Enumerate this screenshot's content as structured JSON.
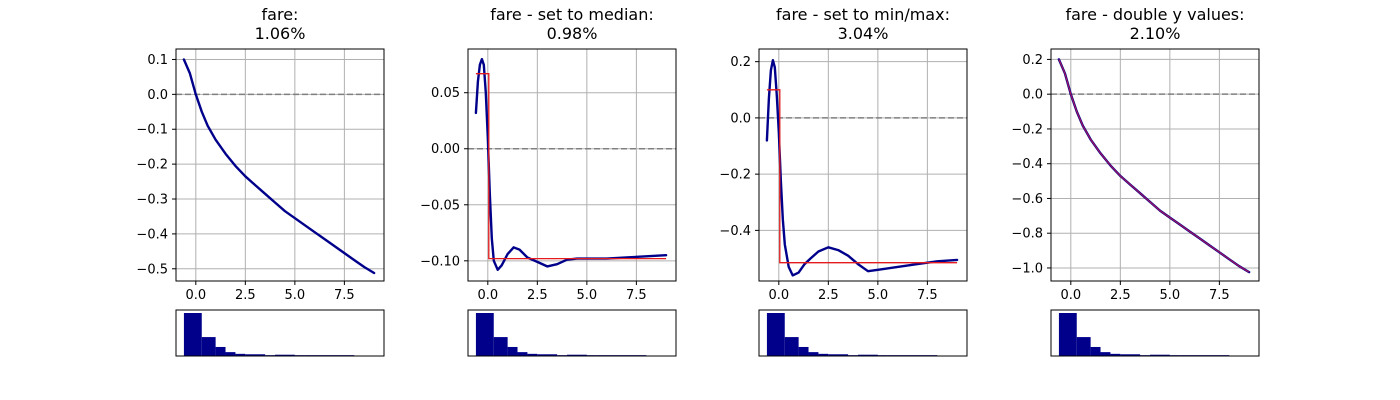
{
  "chart_data": [
    {
      "type": "line",
      "title_lines": [
        "fare:",
        "1.06%"
      ],
      "xlim": [
        -1.0,
        9.5
      ],
      "ylim": [
        -0.535,
        0.13
      ],
      "xticks": [
        0.0,
        2.5,
        5.0,
        7.5
      ],
      "xtick_labels": [
        "0.0",
        "2.5",
        "5.0",
        "7.5"
      ],
      "yticks": [
        0.1,
        0.0,
        -0.1,
        -0.2,
        -0.3,
        -0.4,
        -0.5
      ],
      "ytick_labels": [
        "0.1",
        "0.0",
        "−0.1",
        "−0.2",
        "−0.3",
        "−0.4",
        "−0.5"
      ],
      "zero_line": 0.0,
      "grid": true,
      "series": [
        {
          "style": "line",
          "color": "#00008b",
          "x": [
            -0.6,
            -0.3,
            0.0,
            0.3,
            0.6,
            1.0,
            1.5,
            2.0,
            2.5,
            3.0,
            3.5,
            4.0,
            4.5,
            5.0,
            5.5,
            6.0,
            6.5,
            7.0,
            7.5,
            8.0,
            8.5,
            9.0
          ],
          "y": [
            0.1,
            0.06,
            0.0,
            -0.05,
            -0.09,
            -0.13,
            -0.17,
            -0.205,
            -0.235,
            -0.26,
            -0.285,
            -0.31,
            -0.335,
            -0.355,
            -0.375,
            -0.395,
            -0.415,
            -0.435,
            -0.455,
            -0.475,
            -0.495,
            -0.512
          ]
        }
      ]
    },
    {
      "type": "line",
      "title_lines": [
        "fare - set to median:",
        "0.98%"
      ],
      "xlim": [
        -1.0,
        9.5
      ],
      "ylim": [
        -0.118,
        0.089
      ],
      "xticks": [
        0.0,
        2.5,
        5.0,
        7.5
      ],
      "xtick_labels": [
        "0.0",
        "2.5",
        "5.0",
        "7.5"
      ],
      "yticks": [
        0.05,
        0.0,
        -0.05,
        -0.1
      ],
      "ytick_labels": [
        "0.05",
        "0.00",
        "−0.05",
        "−0.10"
      ],
      "zero_line": 0.0,
      "grid": true,
      "series": [
        {
          "style": "line",
          "color": "#00008b",
          "x": [
            -0.6,
            -0.5,
            -0.4,
            -0.3,
            -0.2,
            -0.1,
            0.0,
            0.1,
            0.2,
            0.3,
            0.5,
            0.7,
            1.0,
            1.3,
            1.6,
            2.0,
            2.5,
            3.0,
            3.5,
            4.0,
            4.5,
            5.0,
            6.0,
            7.0,
            8.0,
            9.0
          ],
          "y": [
            0.032,
            0.06,
            0.075,
            0.08,
            0.075,
            0.05,
            0.01,
            -0.04,
            -0.08,
            -0.1,
            -0.108,
            -0.104,
            -0.094,
            -0.088,
            -0.09,
            -0.097,
            -0.101,
            -0.105,
            -0.103,
            -0.099,
            -0.098,
            -0.098,
            -0.098,
            -0.097,
            -0.096,
            -0.095
          ]
        },
        {
          "style": "step",
          "color": "#e41a1c",
          "x": [
            -0.6,
            0.05,
            0.05,
            9.0
          ],
          "y": [
            0.067,
            0.067,
            -0.098,
            -0.098
          ]
        }
      ]
    },
    {
      "type": "line",
      "title_lines": [
        "fare - set to min/max:",
        "3.04%"
      ],
      "xlim": [
        -1.0,
        9.5
      ],
      "ylim": [
        -0.58,
        0.245
      ],
      "xticks": [
        0.0,
        2.5,
        5.0,
        7.5
      ],
      "xtick_labels": [
        "0.0",
        "2.5",
        "5.0",
        "7.5"
      ],
      "yticks": [
        0.2,
        0.0,
        -0.2,
        -0.4
      ],
      "ytick_labels": [
        "0.2",
        "0.0",
        "−0.2",
        "−0.4"
      ],
      "zero_line": 0.0,
      "grid": true,
      "series": [
        {
          "style": "line",
          "color": "#00008b",
          "x": [
            -0.6,
            -0.5,
            -0.4,
            -0.3,
            -0.2,
            -0.1,
            0.0,
            0.1,
            0.2,
            0.3,
            0.5,
            0.7,
            1.0,
            1.3,
            1.6,
            2.0,
            2.5,
            3.0,
            3.5,
            4.0,
            4.5,
            5.0,
            6.0,
            7.0,
            8.0,
            9.0
          ],
          "y": [
            -0.08,
            0.07,
            0.17,
            0.205,
            0.18,
            0.08,
            -0.05,
            -0.22,
            -0.36,
            -0.45,
            -0.53,
            -0.56,
            -0.55,
            -0.52,
            -0.5,
            -0.475,
            -0.46,
            -0.47,
            -0.49,
            -0.52,
            -0.545,
            -0.54,
            -0.53,
            -0.52,
            -0.51,
            -0.505
          ]
        },
        {
          "style": "step",
          "color": "#e41a1c",
          "x": [
            -0.6,
            0.05,
            0.05,
            9.0
          ],
          "y": [
            0.1,
            0.1,
            -0.515,
            -0.515
          ]
        }
      ]
    },
    {
      "type": "line",
      "title_lines": [
        "fare - double y values:",
        "2.10%"
      ],
      "xlim": [
        -1.0,
        9.5
      ],
      "ylim": [
        -1.075,
        0.26
      ],
      "xticks": [
        0.0,
        2.5,
        5.0,
        7.5
      ],
      "xtick_labels": [
        "0.0",
        "2.5",
        "5.0",
        "7.5"
      ],
      "yticks": [
        0.2,
        0.0,
        -0.2,
        -0.4,
        -0.6,
        -0.8,
        -1.0
      ],
      "ytick_labels": [
        "0.2",
        "0.0",
        "−0.2",
        "−0.4",
        "−0.6",
        "−0.8",
        "−1.0"
      ],
      "zero_line": 0.0,
      "grid": true,
      "series": [
        {
          "style": "line",
          "color": "#00008b",
          "x": [
            -0.6,
            -0.3,
            0.0,
            0.3,
            0.6,
            1.0,
            1.5,
            2.0,
            2.5,
            3.0,
            3.5,
            4.0,
            4.5,
            5.0,
            5.5,
            6.0,
            6.5,
            7.0,
            7.5,
            8.0,
            8.5,
            9.0
          ],
          "y": [
            0.2,
            0.12,
            0.0,
            -0.1,
            -0.18,
            -0.26,
            -0.34,
            -0.41,
            -0.47,
            -0.52,
            -0.57,
            -0.62,
            -0.67,
            -0.71,
            -0.75,
            -0.79,
            -0.83,
            -0.87,
            -0.91,
            -0.95,
            -0.99,
            -1.024
          ]
        },
        {
          "style": "overlay",
          "color": "#c2185b",
          "x": [
            -0.6,
            -0.3,
            0.0,
            0.3,
            0.6,
            1.0,
            1.5,
            2.0,
            2.5,
            3.0,
            3.5,
            4.0,
            4.5,
            5.0,
            5.5,
            6.0,
            6.5,
            7.0,
            7.5,
            8.0,
            8.5,
            9.0
          ],
          "y": [
            0.2,
            0.12,
            0.0,
            -0.1,
            -0.18,
            -0.26,
            -0.34,
            -0.41,
            -0.47,
            -0.52,
            -0.57,
            -0.62,
            -0.67,
            -0.71,
            -0.75,
            -0.79,
            -0.83,
            -0.87,
            -0.91,
            -0.95,
            -0.99,
            -1.024
          ]
        }
      ]
    }
  ],
  "histogram": {
    "type": "bar",
    "color": "#00008b",
    "bin_edges": [
      -0.6,
      0.3,
      1.0,
      1.5,
      2.0,
      2.5,
      3.5,
      4.0,
      5.0,
      5.5,
      8.0,
      9.0
    ],
    "counts": [
      1.0,
      0.44,
      0.21,
      0.09,
      0.05,
      0.04,
      0.02,
      0.03,
      0.02,
      0.02,
      0.0
    ]
  }
}
